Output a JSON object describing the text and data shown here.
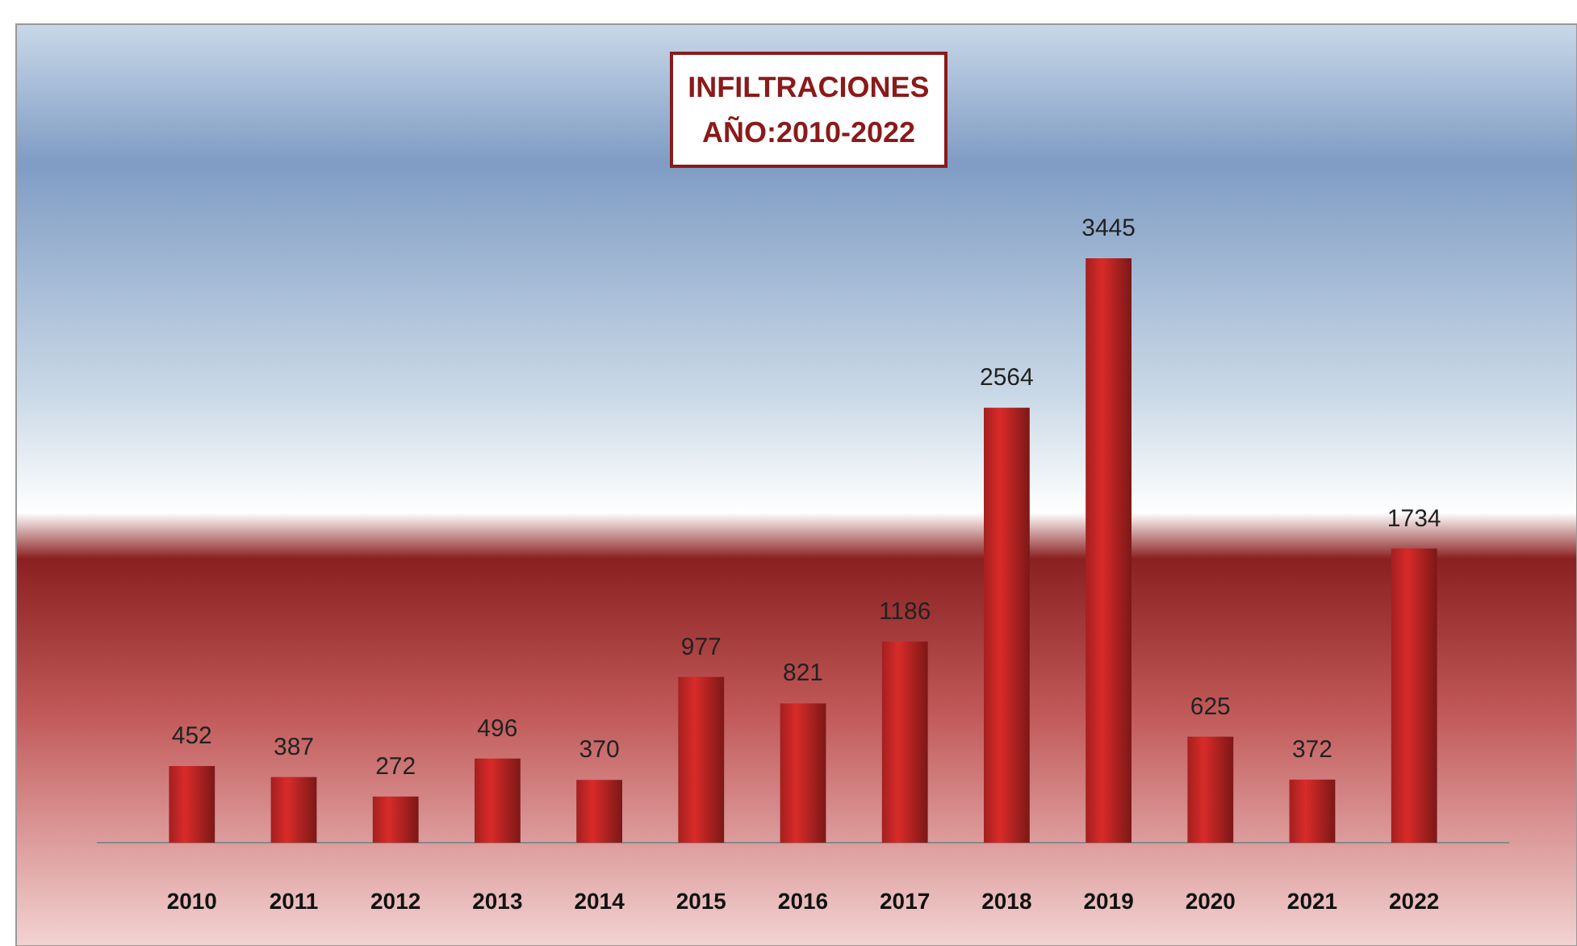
{
  "chart_data": {
    "type": "bar",
    "title": "INFILTRACIONES\nAÑO:2010-2022",
    "categories": [
      "2010",
      "2011",
      "2012",
      "2013",
      "2014",
      "2015",
      "2016",
      "2017",
      "2018",
      "2019",
      "2020",
      "2021",
      "2022"
    ],
    "values": [
      452,
      387,
      272,
      496,
      370,
      977,
      821,
      1186,
      2564,
      3445,
      625,
      372,
      1734
    ],
    "color": "#a3201f",
    "data_labels": true
  }
}
